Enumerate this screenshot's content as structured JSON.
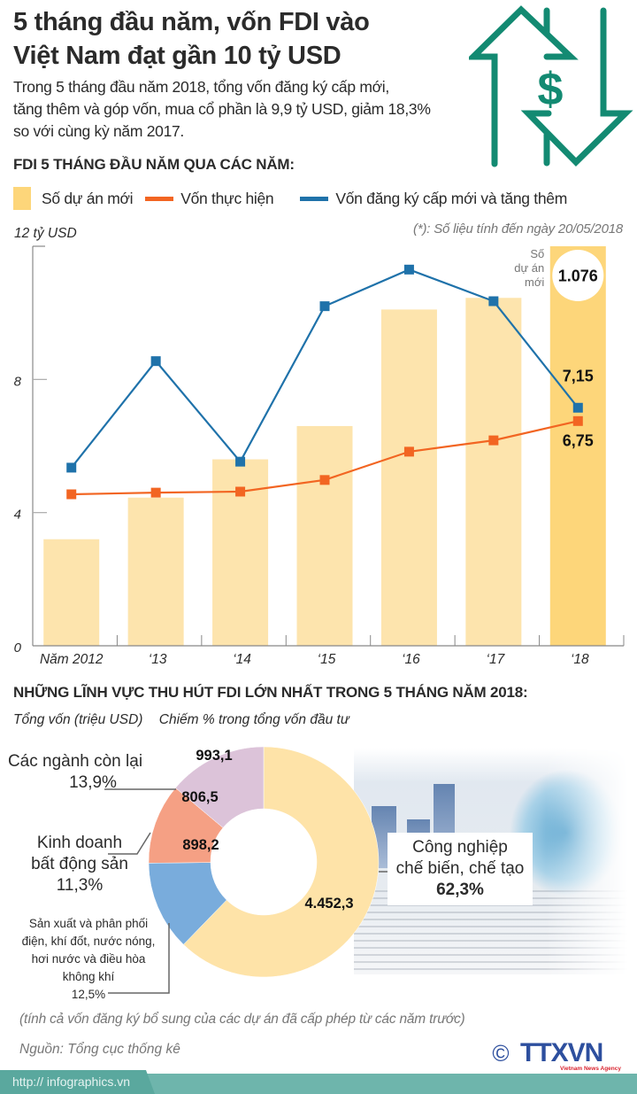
{
  "header": {
    "title_line1": "5 tháng đầu năm, vốn FDI vào",
    "title_line2": "Việt Nam đạt gần 10 tỷ USD",
    "intro_line1": "Trong 5 tháng đầu năm 2018, tổng vốn đăng ký cấp mới,",
    "intro_line2": "tăng thêm và góp vốn, mua cổ phần là 9,9 tỷ USD, giảm 18,3%",
    "intro_line3": "so với cùng kỳ năm 2017.",
    "icon": "dollar-up-down-arrows-icon",
    "icon_symbol": "$"
  },
  "section1": {
    "heading": "FDI 5 THÁNG ĐẦU NĂM QUA CÁC NĂM:",
    "note": "(*): Số liệu tính đến ngày 20/05/2018",
    "unit_label": "12 tỷ USD"
  },
  "chart_data": [
    {
      "type": "bar+line",
      "title": "FDI 5 THÁNG ĐẦU NĂM QUA CÁC NĂM:",
      "ylabel": "tỷ USD",
      "ylim": [
        0,
        12
      ],
      "yticks": [
        0,
        4,
        8
      ],
      "ytick_top_label": "12 tỷ USD",
      "grid": false,
      "legend_position": "top",
      "categories": [
        "Năm 2012",
        "‘13",
        "‘14",
        "‘15",
        "‘16",
        "‘17",
        "‘18"
      ],
      "series": [
        {
          "name": "Số dự án mới",
          "kind": "bar",
          "color": "#fde4ad",
          "highlight_color": "#fdd67a",
          "values": [
            3.2,
            4.45,
            5.6,
            6.6,
            10.1,
            10.45,
            12
          ],
          "labels": [
            null,
            null,
            null,
            null,
            null,
            null,
            "1.076"
          ],
          "label_caption": "Số dự án mới"
        },
        {
          "name": "Vốn thực hiện",
          "kind": "line",
          "color": "#f26522",
          "values": [
            4.55,
            4.6,
            4.63,
            4.98,
            5.83,
            6.17,
            6.75
          ],
          "labels": [
            null,
            null,
            null,
            null,
            null,
            null,
            "6,75"
          ]
        },
        {
          "name": "Vốn đăng ký cấp mới và tăng thêm",
          "kind": "line",
          "color": "#1f72aa",
          "values": [
            5.35,
            8.55,
            5.53,
            10.2,
            11.3,
            10.35,
            7.15
          ],
          "labels": [
            null,
            null,
            null,
            null,
            null,
            null,
            "7,15"
          ]
        }
      ]
    },
    {
      "type": "pie",
      "title": "NHỮNG LĨNH VỰC THU HÚT FDI LỚN NHẤT TRONG 5 THÁNG NĂM 2018:",
      "subtitle_left": "Tổng vốn (triệu USD)",
      "subtitle_right": "Chiếm % trong tổng vốn đầu tư",
      "donut": true,
      "slices": [
        {
          "name": "Công nghiệp chế biến, chế tạo",
          "value": 4452.3,
          "value_label": "4.452,3",
          "percent": "62,3%",
          "color": "#fee3a8"
        },
        {
          "name": "Sản xuất và phân phối điện, khí đốt, nước nóng, hơi nước và điều hòa không khí",
          "value": 898.2,
          "value_label": "898,2",
          "percent": "12,5%",
          "color": "#79acdc"
        },
        {
          "name": "Kinh doanh bất động sản",
          "value": 806.5,
          "value_label": "806,5",
          "percent": "11,3%",
          "color": "#f5a084"
        },
        {
          "name": "Các ngành còn lại",
          "value": 993.1,
          "value_label": "993,1",
          "percent": "13,9%",
          "color": "#dcc3d9"
        }
      ]
    }
  ],
  "legend": [
    {
      "label": "Số dự án mới",
      "color": "#fdd67a"
    },
    {
      "label": "Vốn thực hiện",
      "color": "#f26522"
    },
    {
      "label": "Vốn đăng ký cấp mới và tăng thêm",
      "color": "#1f72aa"
    }
  ],
  "section2": {
    "heading": "NHỮNG LĨNH VỰC THU HÚT FDI LỚN NHẤT TRONG 5 THÁNG NĂM 2018:",
    "subtitle_left": "Tổng vốn (triệu USD)",
    "subtitle_right": "Chiếm % trong tổng vốn đầu tư",
    "label_others_line1": "Các ngành còn lại",
    "label_others_pct": "13,9%",
    "label_realestate_line1": "Kinh doanh",
    "label_realestate_line2": "bất động sản",
    "label_realestate_pct": "11,3%",
    "label_energy_line1": "Sản xuất và phân phối",
    "label_energy_line2": "điện, khí đốt, nước nóng,",
    "label_energy_line3": "hơi nước và điều hòa",
    "label_energy_line4": "không khí",
    "label_energy_pct": "12,5%",
    "label_manuf_line1": "Công nghiệp",
    "label_manuf_line2": "chế biến, chế tạo",
    "label_manuf_pct": "62,3%"
  },
  "footer": {
    "footnote": "(tính cả vốn đăng ký bổ sung của các dự án đã cấp phép từ các năm trước)",
    "source": "Nguồn: Tổng cục thống kê",
    "copyright_symbol": "©",
    "logo_text": "TTXVN",
    "logo_subtext": "Vietnam News Agency",
    "url": "http:// infographics.vn"
  }
}
